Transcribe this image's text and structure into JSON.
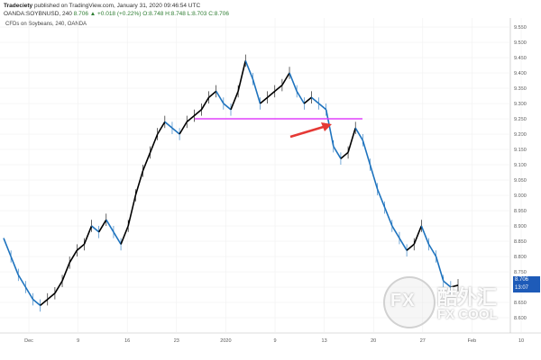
{
  "header": {
    "user": "Tradeciety",
    "published": "published on TradingView.com, January 31, 2020 09:46:54 UTC",
    "symbol_line": "OANDA:SOYBNUSD, 240",
    "ohlc": "8.706 ▲ +0.018 (+0.22%) O:8.748 H:8.748 L:8.703 C:8.706"
  },
  "subtitle": "CFDs on Soybeans, 240, OANDA",
  "price_tags": {
    "last": "8.706",
    "countdown": "13:07"
  },
  "watermark": {
    "fx": "FX",
    "cn": "酷外汇",
    "en": "FX COOL"
  },
  "colors": {
    "up": "#000000",
    "down": "#1e73be",
    "neckline": "#e040fb",
    "arrow": "#e53935",
    "grid": "#eeeeee"
  },
  "chart_data": {
    "type": "line",
    "title": "CFDs on Soybeans, 240, OANDA",
    "xlabel": "",
    "ylabel": "",
    "ylim": [
      8.55,
      9.55
    ],
    "x_ticks": [
      "Dec",
      "9",
      "16",
      "23",
      "2020",
      "9",
      "13",
      "20",
      "27",
      "Feb",
      "10"
    ],
    "y_ticks": [
      "9.550",
      "9.500",
      "9.450",
      "9.400",
      "9.350",
      "9.300",
      "9.250",
      "9.200",
      "9.150",
      "9.100",
      "9.050",
      "9.000",
      "8.950",
      "8.900",
      "8.850",
      "8.800",
      "8.750",
      "8.700",
      "8.650",
      "8.600"
    ],
    "series": [
      {
        "values": [
          8.86,
          8.8,
          8.74,
          8.7,
          8.66,
          8.64,
          8.66,
          8.68,
          8.72,
          8.78,
          8.82,
          8.84,
          8.9,
          8.88,
          8.92,
          8.88,
          8.84,
          8.9,
          9.0,
          9.08,
          9.14,
          9.2,
          9.24,
          9.22,
          9.2,
          9.24,
          9.26,
          9.28,
          9.32,
          9.34,
          9.3,
          9.28,
          9.34,
          9.44,
          9.38,
          9.3,
          9.32,
          9.34,
          9.36,
          9.4,
          9.34,
          9.3,
          9.32,
          9.3,
          9.28,
          9.16,
          9.12,
          9.14,
          9.22,
          9.18,
          9.1,
          9.02,
          8.96,
          8.9,
          8.86,
          8.82,
          8.84,
          8.9,
          8.84,
          8.8,
          8.72,
          8.7,
          8.706
        ]
      }
    ],
    "annotations": [
      {
        "type": "horizontal_line",
        "label": "neckline",
        "y": 9.25
      },
      {
        "type": "arrow",
        "label": "breakdown"
      }
    ],
    "grid": true,
    "legend": "none"
  }
}
